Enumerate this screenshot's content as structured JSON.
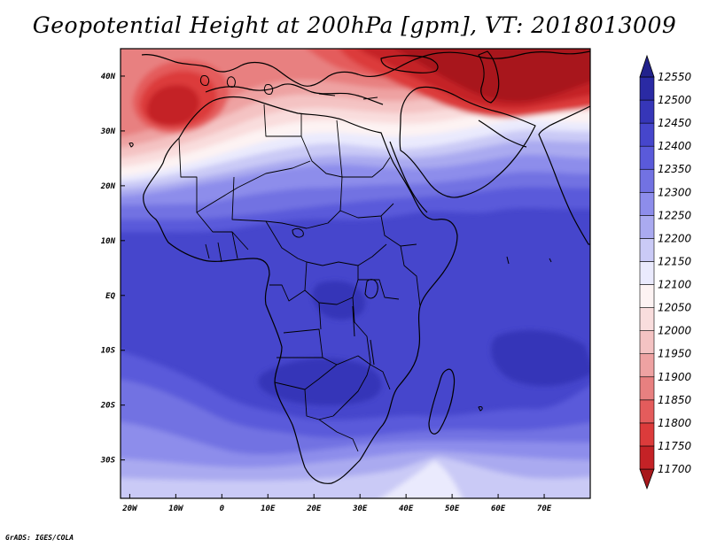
{
  "title": "Geopotential Height at 200hPa [gpm], VT: 2018013009",
  "footer": "GrADS: IGES/COLA",
  "chart_data": {
    "type": "heatmap",
    "variable": "Geopotential Height",
    "level": "200hPa",
    "units": "gpm",
    "valid_time": "2018013009",
    "lon_range": [
      -22,
      80
    ],
    "lat_range": [
      -37,
      45
    ],
    "x_ticks": [
      {
        "lon": -20,
        "label": "20W"
      },
      {
        "lon": -10,
        "label": "10W"
      },
      {
        "lon": 0,
        "label": "0"
      },
      {
        "lon": 10,
        "label": "10E"
      },
      {
        "lon": 20,
        "label": "20E"
      },
      {
        "lon": 30,
        "label": "30E"
      },
      {
        "lon": 40,
        "label": "40E"
      },
      {
        "lon": 50,
        "label": "50E"
      },
      {
        "lon": 60,
        "label": "60E"
      },
      {
        "lon": 70,
        "label": "70E"
      }
    ],
    "y_ticks": [
      {
        "lat": 40,
        "label": "40N"
      },
      {
        "lat": 30,
        "label": "30N"
      },
      {
        "lat": 20,
        "label": "20N"
      },
      {
        "lat": 10,
        "label": "10N"
      },
      {
        "lat": 0,
        "label": "EQ"
      },
      {
        "lat": -10,
        "label": "10S"
      },
      {
        "lat": -20,
        "label": "20S"
      },
      {
        "lat": -30,
        "label": "30S"
      }
    ],
    "colorbar": {
      "levels": [
        11700,
        11750,
        11800,
        11850,
        11900,
        11950,
        12000,
        12050,
        12100,
        12150,
        12200,
        12250,
        12300,
        12350,
        12400,
        12450,
        12500,
        12550
      ],
      "colors": [
        "#a8181c",
        "#c42226",
        "#dc3b3b",
        "#e45c5c",
        "#e88080",
        "#eea2a2",
        "#f4c3c3",
        "#f9dddd",
        "#fdf3f3",
        "#eaeafd",
        "#cacaf6",
        "#aaaaf0",
        "#8d8deb",
        "#7272e2",
        "#5a5ada",
        "#4646cc",
        "#3636b8",
        "#2a2aa4",
        "#22228c"
      ],
      "extend": "both"
    }
  }
}
